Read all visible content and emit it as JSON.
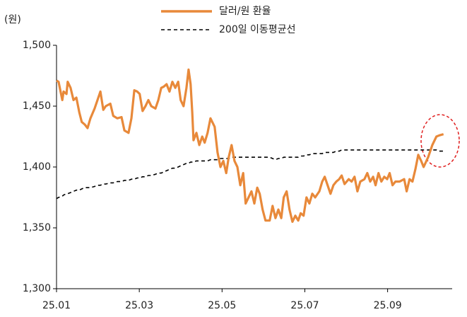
{
  "chart_data": {
    "type": "line",
    "y_label": "(원)",
    "x": [
      0,
      0.05,
      0.14,
      0.17,
      0.24,
      0.27,
      0.34,
      0.41,
      0.48,
      0.55,
      0.61,
      0.68,
      0.75,
      0.82,
      0.92,
      0.99,
      1.06,
      1.13,
      1.19,
      1.3,
      1.37,
      1.47,
      1.57,
      1.64,
      1.74,
      1.81,
      1.88,
      1.95,
      2.01,
      2.08,
      2.15,
      2.22,
      2.29,
      2.39,
      2.46,
      2.53,
      2.59,
      2.66,
      2.73,
      2.8,
      2.87,
      2.94,
      3.0,
      3.07,
      3.14,
      3.19,
      3.24,
      3.28,
      3.31,
      3.38,
      3.45,
      3.52,
      3.58,
      3.65,
      3.72,
      3.82,
      3.89,
      3.96,
      4.03,
      4.1,
      4.16,
      4.23,
      4.3,
      4.37,
      4.44,
      4.51,
      4.57,
      4.64,
      4.71,
      4.78,
      4.85,
      4.91,
      4.98,
      5.05,
      5.15,
      5.22,
      5.29,
      5.36,
      5.43,
      5.49,
      5.56,
      5.63,
      5.7,
      5.77,
      5.84,
      5.9,
      5.97,
      6.04,
      6.11,
      6.18,
      6.25,
      6.35,
      6.42,
      6.48,
      6.55,
      6.62,
      6.69,
      6.76,
      6.83,
      6.89,
      6.96,
      7.06,
      7.13,
      7.2,
      7.27,
      7.34,
      7.44,
      7.51,
      7.58,
      7.65,
      7.71,
      7.78,
      7.85,
      7.92,
      7.99,
      8.05,
      8.12,
      8.19,
      8.29,
      8.4,
      8.46,
      8.53,
      8.6,
      8.67,
      8.74,
      8.81,
      8.87,
      8.98,
      9.08,
      9.18,
      9.25,
      9.35
    ],
    "series": [
      {
        "name": "달러/원 환율",
        "color": "#e8893a",
        "dash": false,
        "values": [
          1471,
          1470,
          1455,
          1462,
          1460,
          1470,
          1465,
          1455,
          1457,
          1445,
          1437,
          1435,
          1432,
          1440,
          1448,
          1455,
          1462,
          1447,
          1450,
          1452,
          1442,
          1440,
          1441,
          1430,
          1428,
          1440,
          1463,
          1462,
          1460,
          1446,
          1450,
          1455,
          1450,
          1448,
          1455,
          1465,
          1466,
          1468,
          1462,
          1470,
          1465,
          1470,
          1455,
          1450,
          1465,
          1480,
          1468,
          1445,
          1422,
          1428,
          1418,
          1425,
          1420,
          1428,
          1440,
          1433,
          1412,
          1400,
          1405,
          1395,
          1408,
          1418,
          1405,
          1400,
          1385,
          1395,
          1370,
          1375,
          1380,
          1370,
          1383,
          1378,
          1365,
          1356,
          1356,
          1368,
          1358,
          1365,
          1358,
          1375,
          1380,
          1365,
          1355,
          1360,
          1356,
          1362,
          1360,
          1375,
          1370,
          1378,
          1375,
          1380,
          1388,
          1392,
          1385,
          1378,
          1385,
          1388,
          1390,
          1393,
          1386,
          1390,
          1388,
          1392,
          1380,
          1388,
          1390,
          1395,
          1388,
          1392,
          1385,
          1395,
          1388,
          1392,
          1390,
          1395,
          1385,
          1388,
          1388,
          1390,
          1380,
          1390,
          1388,
          1398,
          1410,
          1405,
          1400,
          1408,
          1418,
          1425,
          1426,
          1427
        ]
      },
      {
        "name": "200일 이동평균선",
        "color": "#000000",
        "dash": true,
        "values": [
          1374,
          1375,
          1376,
          1377,
          1378,
          1378,
          1379,
          1380,
          1381,
          1381,
          1382,
          1383,
          1383,
          1383,
          1384,
          1385,
          1385,
          1386,
          1386,
          1387,
          1387,
          1388,
          1388,
          1389,
          1389,
          1390,
          1390,
          1391,
          1391,
          1392,
          1392,
          1393,
          1393,
          1394,
          1395,
          1395,
          1396,
          1397,
          1398,
          1399,
          1399,
          1400,
          1401,
          1402,
          1403,
          1403,
          1404,
          1404,
          1404,
          1405,
          1405,
          1405,
          1405,
          1405,
          1406,
          1406,
          1406,
          1407,
          1407,
          1407,
          1407,
          1408,
          1408,
          1408,
          1408,
          1408,
          1408,
          1408,
          1408,
          1408,
          1408,
          1408,
          1408,
          1408,
          1408,
          1407,
          1406,
          1407,
          1407,
          1408,
          1408,
          1408,
          1408,
          1408,
          1408,
          1409,
          1409,
          1410,
          1410,
          1411,
          1411,
          1411,
          1411,
          1412,
          1412,
          1412,
          1412,
          1413,
          1413,
          1414,
          1414,
          1414,
          1414,
          1414,
          1414,
          1414,
          1414,
          1414,
          1414,
          1414,
          1414,
          1414,
          1414,
          1414,
          1414,
          1414,
          1414,
          1414,
          1414,
          1414,
          1414,
          1414,
          1414,
          1414,
          1414,
          1414,
          1414,
          1414,
          1414,
          1414,
          1413,
          1413
        ]
      }
    ],
    "xlim": [
      0,
      9.56
    ],
    "xticks": [
      {
        "value": 0,
        "label": "25.01"
      },
      {
        "value": 2,
        "label": "25.03"
      },
      {
        "value": 4,
        "label": "25.05"
      },
      {
        "value": 6,
        "label": "25.07"
      },
      {
        "value": 8,
        "label": "25.09"
      }
    ],
    "ylim": [
      1300,
      1500
    ],
    "yticks": [
      {
        "value": 1300,
        "label": "1,300"
      },
      {
        "value": 1350,
        "label": "1,350"
      },
      {
        "value": 1400,
        "label": "1,400"
      },
      {
        "value": 1450,
        "label": "1,450"
      },
      {
        "value": 1500,
        "label": "1,500"
      }
    ],
    "legend": "top"
  }
}
